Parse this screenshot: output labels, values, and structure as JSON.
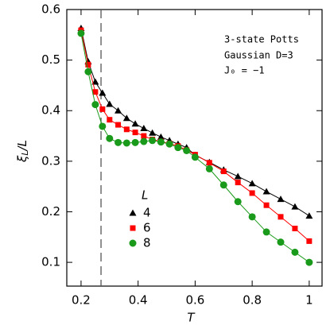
{
  "chart_data": {
    "type": "line",
    "xlabel": "T",
    "ylabel": {
      "symbol": "ξ",
      "sub": "L",
      "rest": "/L"
    },
    "annotations": [
      "3-state Potts",
      "Gaussian D=3",
      "J₀ = −1"
    ],
    "legend_title": "L",
    "vline": 0.27,
    "x": [
      0.2,
      0.225,
      0.25,
      0.275,
      0.3,
      0.33,
      0.36,
      0.39,
      0.42,
      0.45,
      0.48,
      0.51,
      0.54,
      0.57,
      0.6,
      0.65,
      0.7,
      0.75,
      0.8,
      0.85,
      0.9,
      0.95,
      1.0
    ],
    "series": [
      {
        "name": "4",
        "color": "#000000",
        "marker": "triangle",
        "values": [
          0.563,
          0.497,
          0.457,
          0.435,
          0.413,
          0.4,
          0.385,
          0.374,
          0.365,
          0.356,
          0.348,
          0.341,
          0.334,
          0.327,
          0.312,
          0.298,
          0.283,
          0.27,
          0.256,
          0.24,
          0.225,
          0.21,
          0.192
        ]
      },
      {
        "name": "6",
        "color": "#ff0000",
        "marker": "square",
        "values": [
          0.559,
          0.491,
          0.437,
          0.403,
          0.382,
          0.372,
          0.363,
          0.357,
          0.35,
          0.343,
          0.339,
          0.335,
          0.33,
          0.322,
          0.313,
          0.297,
          0.28,
          0.258,
          0.237,
          0.213,
          0.19,
          0.167,
          0.142
        ]
      },
      {
        "name": "8",
        "color": "#1a9a1a",
        "marker": "circle",
        "values": [
          0.553,
          0.477,
          0.412,
          0.369,
          0.345,
          0.337,
          0.336,
          0.337,
          0.339,
          0.341,
          0.338,
          0.334,
          0.327,
          0.321,
          0.308,
          0.285,
          0.253,
          0.22,
          0.19,
          0.16,
          0.14,
          0.12,
          0.1
        ]
      }
    ],
    "xlim": [
      0.15,
      1.045
    ],
    "ylim": [
      0.053,
      0.6
    ],
    "xticks": [
      0.2,
      0.4,
      0.6,
      0.8,
      1
    ],
    "yticks": [
      0.1,
      0.2,
      0.3,
      0.4,
      0.5,
      0.6
    ]
  }
}
